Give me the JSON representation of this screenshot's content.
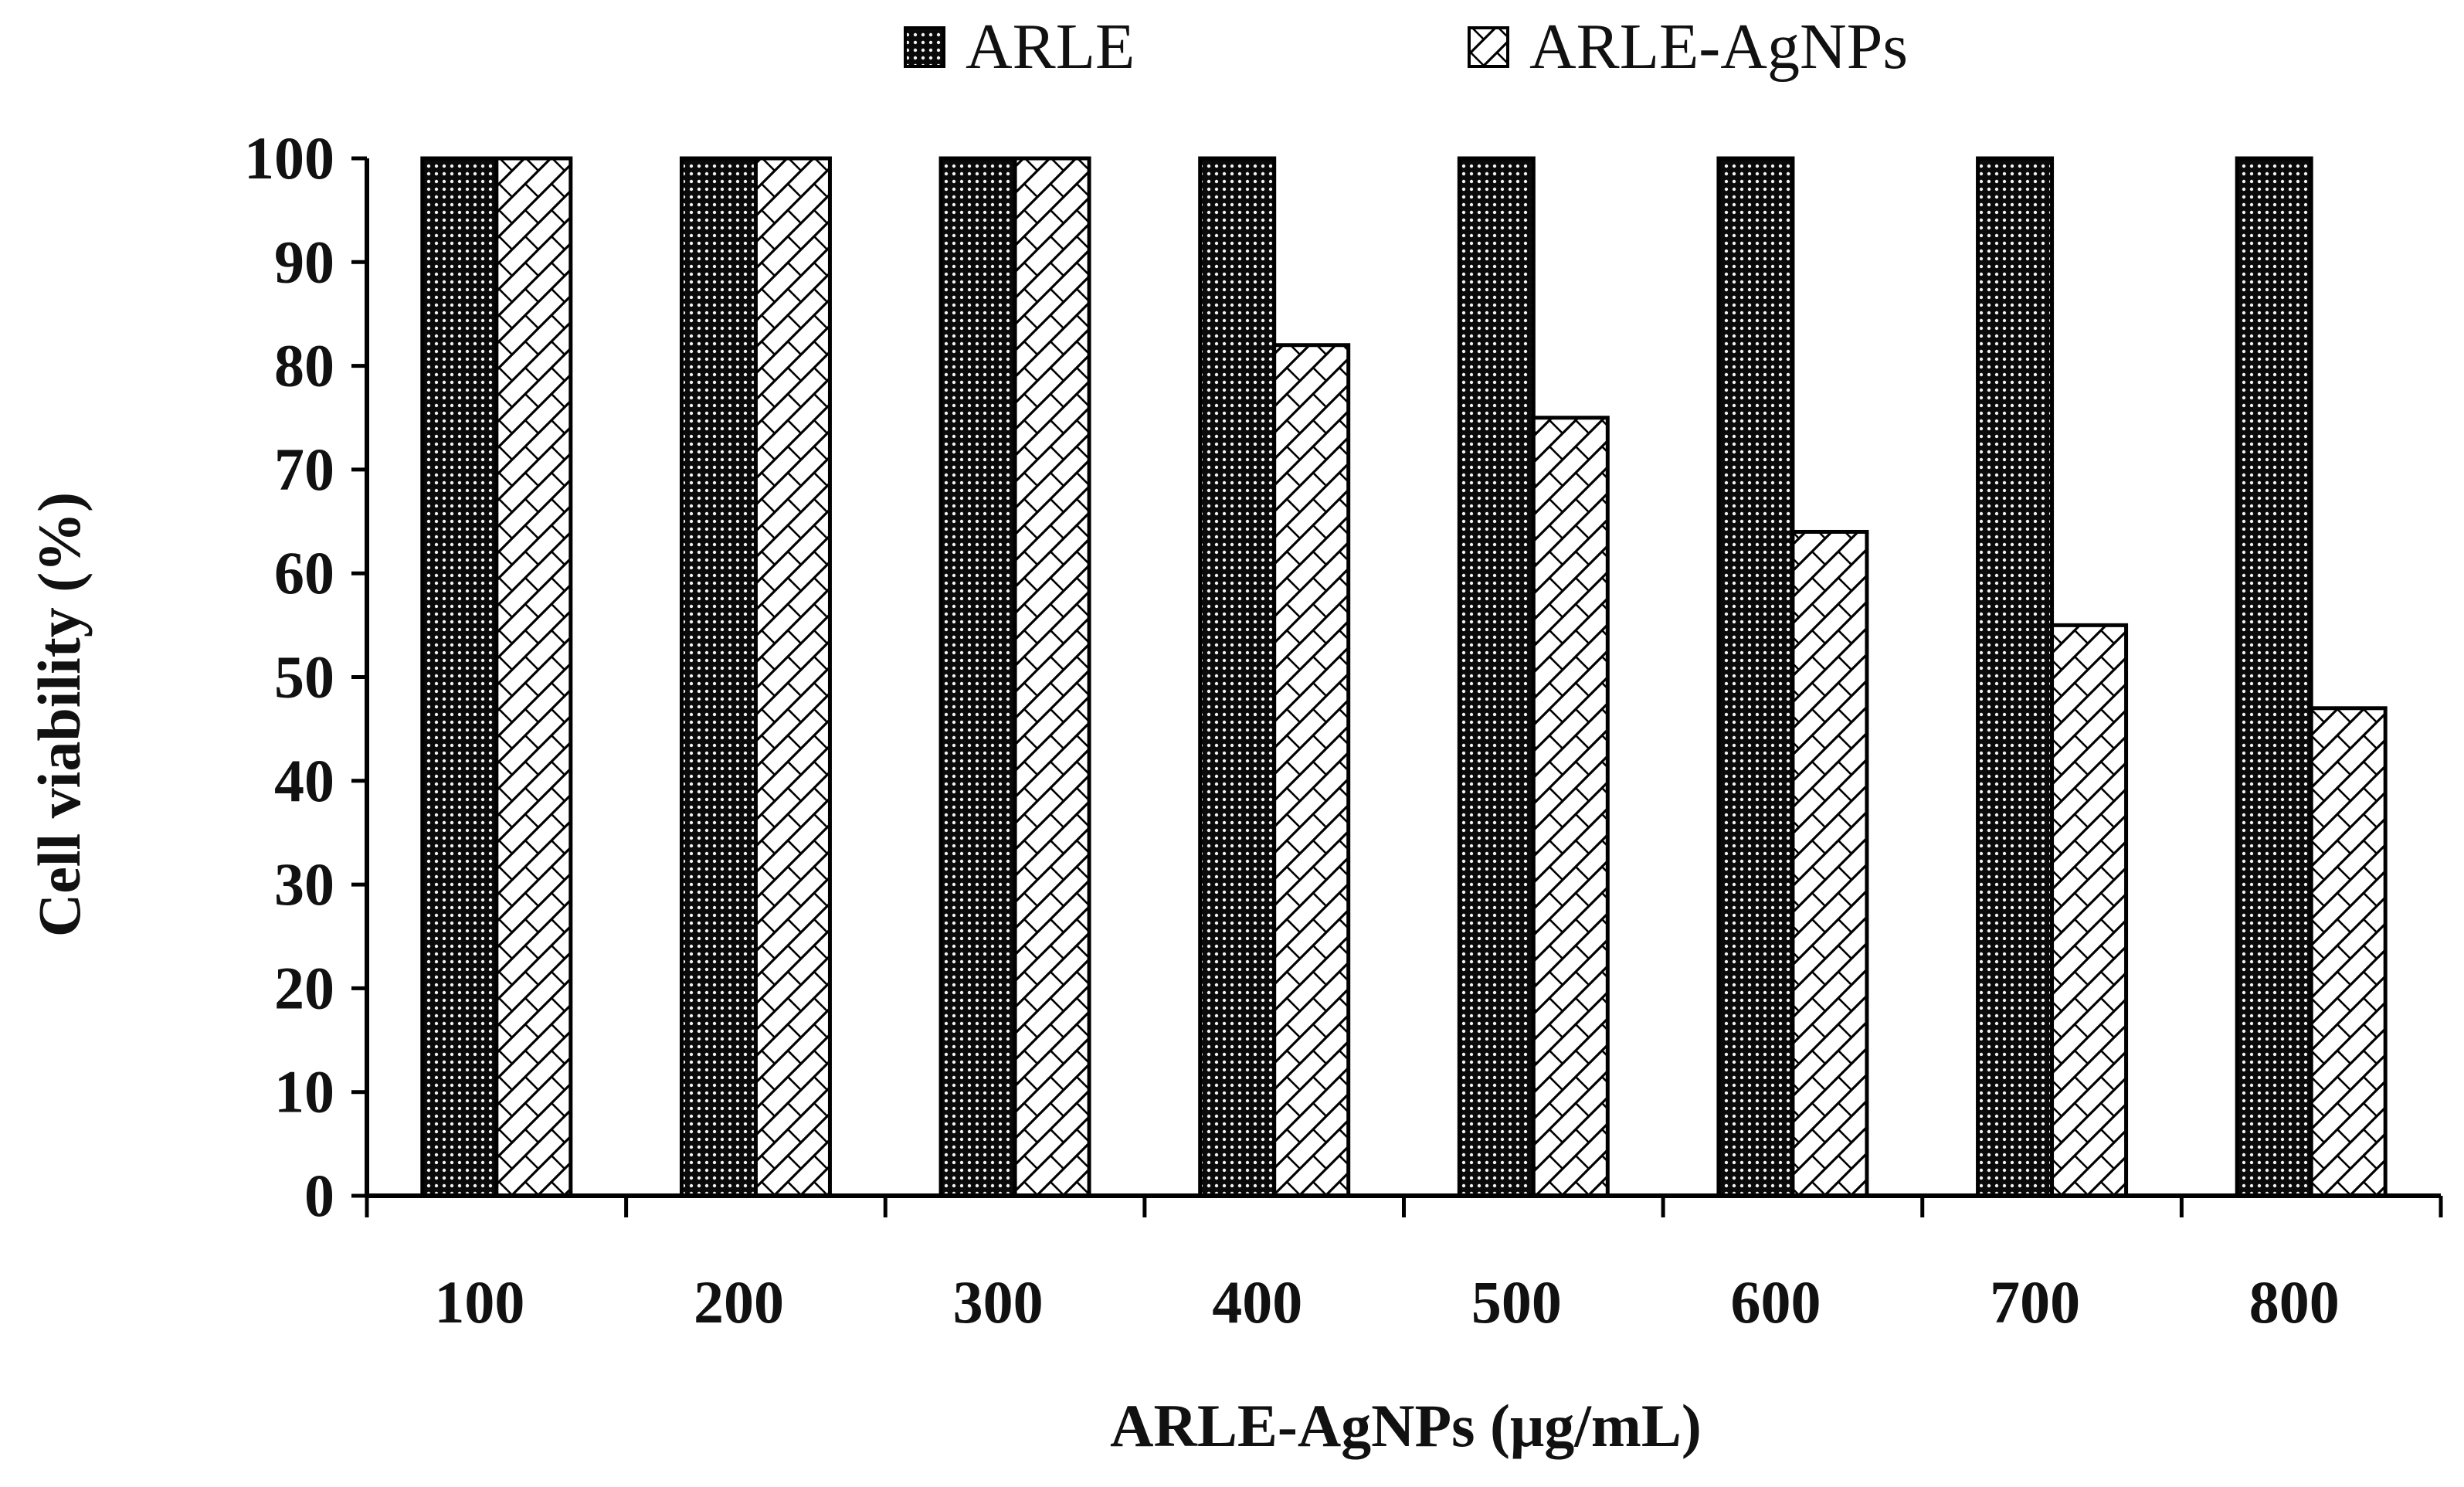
{
  "chart_data": {
    "type": "bar",
    "title": "",
    "xlabel": "ARLE-AgNPs  (μg/mL)",
    "ylabel": "Cell viability  (%)",
    "categories": [
      "100",
      "200",
      "300",
      "400",
      "500",
      "600",
      "700",
      "800"
    ],
    "series": [
      {
        "name": "ARLE",
        "values": [
          100,
          100,
          100,
          100,
          100,
          100,
          100,
          100
        ],
        "fill": "dense-dotted-black",
        "color": "#000000"
      },
      {
        "name": "ARLE-AgNPs",
        "values": [
          100,
          100,
          100,
          82,
          75,
          64,
          55,
          47
        ],
        "fill": "diagonal-hatch",
        "color": "#000000"
      }
    ],
    "ylim": [
      0,
      100
    ],
    "yticks": [
      0,
      10,
      20,
      30,
      40,
      50,
      60,
      70,
      80,
      90,
      100
    ],
    "grid": false,
    "legend_position": "top-center"
  }
}
